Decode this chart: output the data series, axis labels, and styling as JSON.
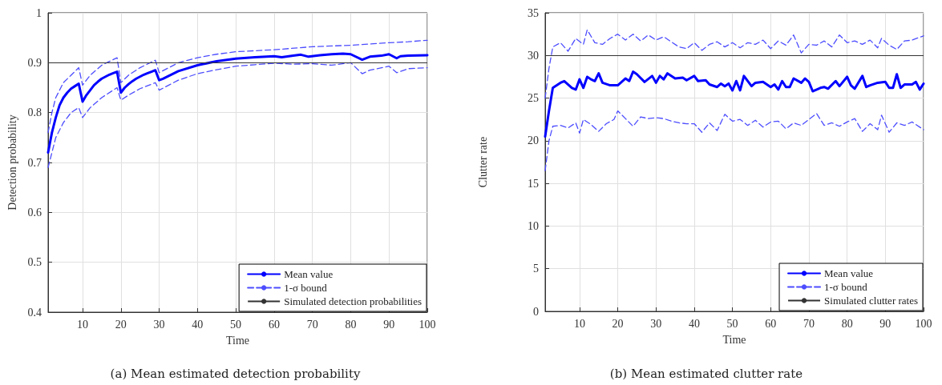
{
  "chart_data": [
    {
      "type": "line",
      "title": "(a) Mean estimated detection probability",
      "xlabel": "Time",
      "ylabel": "Detection probability",
      "xlim": [
        1,
        100
      ],
      "xticks": [
        10,
        20,
        30,
        40,
        50,
        60,
        70,
        80,
        90,
        100
      ],
      "ylim": [
        0.4,
        1
      ],
      "yticks": [
        0.4,
        0.5,
        0.6,
        0.7,
        0.8,
        0.9,
        1
      ],
      "grid": true,
      "legend": "bottom right",
      "marker": "none",
      "series": [
        {
          "name": "Mean value",
          "color": "#0000ff",
          "line_style": "solid",
          "x": [
            1,
            2,
            3,
            4,
            5,
            6,
            7,
            8,
            9,
            10,
            11,
            12,
            13,
            14,
            15,
            16,
            17,
            18,
            19,
            20,
            21,
            22,
            23,
            24,
            25,
            26,
            27,
            28,
            29,
            30,
            31,
            35,
            40,
            45,
            50,
            55,
            60,
            62,
            65,
            67,
            69,
            72,
            75,
            78,
            80,
            83,
            85,
            88,
            90,
            92,
            93,
            95,
            100
          ],
          "values": [
            0.72,
            0.76,
            0.79,
            0.815,
            0.83,
            0.84,
            0.848,
            0.853,
            0.858,
            0.822,
            0.835,
            0.845,
            0.855,
            0.862,
            0.868,
            0.872,
            0.876,
            0.879,
            0.882,
            0.84,
            0.85,
            0.857,
            0.863,
            0.868,
            0.872,
            0.876,
            0.879,
            0.882,
            0.885,
            0.865,
            0.868,
            0.883,
            0.895,
            0.903,
            0.908,
            0.911,
            0.913,
            0.911,
            0.914,
            0.916,
            0.912,
            0.915,
            0.917,
            0.918,
            0.917,
            0.906,
            0.912,
            0.914,
            0.917,
            0.909,
            0.913,
            0.914,
            0.915
          ]
        },
        {
          "name": "1-σ bound",
          "color": "#4d4dff",
          "line_style": "dashed",
          "x": [
            1,
            2,
            3,
            5,
            7,
            9,
            10,
            12,
            15,
            19,
            20,
            22,
            25,
            29,
            30,
            35,
            40,
            45,
            50,
            60,
            70,
            80,
            90,
            95,
            100
          ],
          "values": [
            0.76,
            0.8,
            0.83,
            0.86,
            0.875,
            0.89,
            0.855,
            0.875,
            0.895,
            0.91,
            0.86,
            0.875,
            0.89,
            0.905,
            0.88,
            0.9,
            0.91,
            0.917,
            0.922,
            0.926,
            0.932,
            0.935,
            0.94,
            0.942,
            0.945
          ]
        },
        {
          "color": "#4d4dff",
          "line_style": "dashed",
          "x": [
            1,
            2,
            3,
            5,
            7,
            9,
            10,
            12,
            15,
            19,
            20,
            22,
            25,
            29,
            30,
            35,
            40,
            45,
            50,
            55,
            60,
            65,
            70,
            75,
            80,
            83,
            85,
            90,
            92,
            95,
            100
          ],
          "values": [
            0.69,
            0.72,
            0.75,
            0.78,
            0.8,
            0.81,
            0.79,
            0.81,
            0.83,
            0.85,
            0.825,
            0.835,
            0.848,
            0.86,
            0.845,
            0.865,
            0.878,
            0.886,
            0.893,
            0.896,
            0.899,
            0.897,
            0.898,
            0.895,
            0.9,
            0.878,
            0.885,
            0.893,
            0.88,
            0.888,
            0.89
          ]
        }
      ],
      "ref_lines": [
        {
          "axis": "y",
          "value": 0.9,
          "label": "Simulated detection probabilities",
          "color": "#333333"
        }
      ]
    },
    {
      "type": "line",
      "title": "(b) Mean estimated clutter rate",
      "xlabel": "Time",
      "ylabel": "Clutter rate",
      "xlim": [
        1,
        100
      ],
      "xticks": [
        10,
        20,
        30,
        40,
        50,
        60,
        70,
        80,
        90,
        100
      ],
      "ylim": [
        0,
        35
      ],
      "yticks": [
        0,
        5,
        10,
        15,
        20,
        25,
        30,
        35
      ],
      "grid": true,
      "legend": "bottom right",
      "marker": "none",
      "series": [
        {
          "name": "Mean value",
          "color": "#0000ff",
          "line_style": "solid",
          "x": [
            1,
            2,
            3,
            5,
            6,
            8,
            9,
            10,
            11,
            12,
            13,
            14,
            15,
            16,
            18,
            20,
            22,
            23,
            24,
            25,
            27,
            29,
            30,
            31,
            32,
            33,
            35,
            37,
            38,
            40,
            41,
            43,
            44,
            46,
            47,
            48,
            49,
            50,
            51,
            52,
            53,
            55,
            56,
            58,
            60,
            61,
            62,
            63,
            64,
            65,
            66,
            68,
            69,
            70,
            71,
            73,
            74,
            75,
            77,
            78,
            80,
            81,
            82,
            84,
            85,
            86,
            88,
            90,
            91,
            92,
            93,
            94,
            95,
            97,
            98,
            99,
            100
          ],
          "values": [
            20.5,
            23.5,
            26.2,
            26.8,
            27,
            26.2,
            26,
            27.2,
            26.2,
            27.5,
            27.2,
            27,
            27.9,
            26.8,
            26.5,
            26.5,
            27.3,
            27,
            28.1,
            27.8,
            26.9,
            27.6,
            26.8,
            27.6,
            27.2,
            27.9,
            27.3,
            27.4,
            27.1,
            27.6,
            27,
            27.1,
            26.6,
            26.3,
            26.7,
            26.4,
            26.7,
            25.9,
            27,
            25.9,
            27.6,
            26.4,
            26.8,
            26.9,
            26.3,
            26.6,
            26,
            27,
            26.3,
            26.3,
            27.3,
            26.8,
            27.3,
            26.9,
            25.8,
            26.2,
            26.3,
            26.1,
            27,
            26.4,
            27.5,
            26.5,
            26.1,
            27.6,
            26.3,
            26.5,
            26.8,
            26.9,
            26.2,
            26.2,
            27.8,
            26.2,
            26.6,
            26.6,
            26.9,
            26,
            26.7
          ]
        },
        {
          "name": "1-σ bound",
          "color": "#4d4dff",
          "line_style": "dashed",
          "x": [
            1,
            2,
            3,
            5,
            7,
            9,
            11,
            12,
            14,
            16,
            18,
            20,
            22,
            24,
            26,
            28,
            30,
            32,
            34,
            36,
            38,
            40,
            42,
            44,
            46,
            48,
            50,
            52,
            54,
            56,
            58,
            60,
            62,
            64,
            66,
            68,
            70,
            72,
            74,
            76,
            78,
            80,
            82,
            84,
            86,
            88,
            89,
            91,
            93,
            95,
            97,
            100
          ],
          "values": [
            25,
            28.5,
            31,
            31.5,
            30.5,
            32,
            31.3,
            33,
            31.5,
            31.3,
            32,
            32.5,
            31.8,
            32.5,
            31.7,
            32.4,
            31.8,
            32.2,
            31.6,
            31,
            30.8,
            31.5,
            30.6,
            31.3,
            31.6,
            31,
            31.5,
            30.9,
            31.5,
            31.3,
            31.8,
            30.8,
            31.7,
            31.2,
            32.4,
            30.3,
            31.3,
            31.2,
            31.7,
            31,
            32.4,
            31.5,
            31.7,
            31.3,
            31.8,
            30.9,
            32,
            31.2,
            30.7,
            31.7,
            31.8,
            32.3
          ]
        },
        {
          "color": "#4d4dff",
          "line_style": "dashed",
          "x": [
            1,
            2,
            3,
            5,
            7,
            9,
            10,
            11,
            13,
            15,
            17,
            19,
            20,
            22,
            24,
            26,
            28,
            30,
            32,
            34,
            36,
            38,
            40,
            42,
            44,
            46,
            48,
            50,
            52,
            54,
            56,
            58,
            60,
            62,
            64,
            66,
            68,
            70,
            72,
            74,
            76,
            78,
            80,
            82,
            84,
            86,
            88,
            89,
            91,
            93,
            95,
            97,
            100
          ],
          "values": [
            16.5,
            20,
            21.7,
            21.8,
            21.5,
            22.1,
            20.9,
            22.5,
            21.9,
            21.1,
            22,
            22.5,
            23.5,
            22.6,
            21.7,
            22.8,
            22.6,
            22.7,
            22.6,
            22.3,
            22.1,
            22,
            22,
            21,
            22.1,
            21.2,
            23.1,
            22.3,
            22.5,
            21.8,
            22.4,
            21.6,
            22.2,
            22.3,
            21.4,
            22.1,
            21.8,
            22.5,
            23.2,
            21.8,
            22.1,
            21.7,
            22.2,
            22.6,
            21.1,
            22,
            21.3,
            23,
            21,
            22.1,
            21.8,
            22.2,
            21.3
          ]
        }
      ],
      "ref_lines": [
        {
          "axis": "y",
          "value": 30,
          "label": "Simulated clutter rates",
          "color": "#333333"
        }
      ]
    }
  ]
}
